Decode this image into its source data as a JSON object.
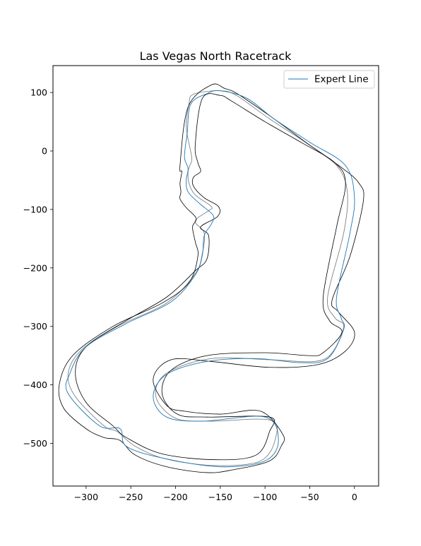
{
  "chart_data": {
    "type": "line",
    "title": "Las Vegas North Racetrack",
    "xlabel": "",
    "ylabel": "",
    "xlim": [
      -337,
      27
    ],
    "ylim": [
      -573,
      146
    ],
    "x_ticks": [
      -300,
      -250,
      -200,
      -150,
      -100,
      -50,
      0
    ],
    "x_tick_labels": [
      "−300",
      "−250",
      "−200",
      "−150",
      "−100",
      "−50",
      "0"
    ],
    "y_ticks": [
      100,
      0,
      -100,
      -200,
      -300,
      -400,
      -500
    ],
    "y_tick_labels": [
      "100",
      "0",
      "−100",
      "−200",
      "−300",
      "−400",
      "−500"
    ],
    "grid": false,
    "legend_position": "top-right",
    "colors": {
      "boundary": "#000000",
      "centerline": "#808080",
      "expert": "#1f77b4"
    },
    "series": [
      {
        "name": "",
        "role": "centerline",
        "x": [
          -151,
          -132,
          -95,
          -55,
          -20,
          -8,
          -12,
          -30,
          -22,
          -12,
          -25,
          -45,
          -95,
          -160,
          -210,
          -222,
          -200,
          -160,
          -95,
          -88,
          -105,
          -155,
          -210,
          -245,
          -265,
          -280,
          -312,
          -320,
          -305,
          -265,
          -210,
          -178,
          -170,
          -168,
          -178,
          -163,
          -160,
          -178,
          -185,
          -186,
          -184,
          -182,
          -188,
          -185,
          -180,
          -151
        ],
        "y": [
          103,
          95,
          55,
          15,
          -25,
          -70,
          -140,
          -250,
          -285,
          -300,
          -345,
          -360,
          -357,
          -355,
          -380,
          -420,
          -457,
          -462,
          -460,
          -490,
          -530,
          -538,
          -527,
          -505,
          -480,
          -470,
          -420,
          -380,
          -340,
          -300,
          -260,
          -210,
          -175,
          -140,
          -120,
          -102,
          -95,
          -75,
          -55,
          -35,
          -25,
          -10,
          40,
          80,
          97,
          103
        ]
      },
      {
        "name": "",
        "role": "outer-boundary",
        "x": [
          -160,
          -145,
          -130,
          -90,
          -50,
          -13,
          5,
          10,
          -5,
          -25,
          -18,
          0,
          -10,
          -40,
          -95,
          -160,
          -205,
          -225,
          -210,
          -190,
          -150,
          -105,
          -80,
          -82,
          -95,
          -135,
          -165,
          -210,
          -245,
          -262,
          -280,
          -300,
          -325,
          -330,
          -315,
          -270,
          -215,
          -185,
          -175,
          -178,
          -181,
          -177,
          -188,
          -195,
          -194,
          -195,
          -193,
          -195,
          -186,
          -160
        ],
        "y": [
          113,
          107,
          97,
          55,
          10,
          -30,
          -55,
          -85,
          -180,
          -255,
          -275,
          -310,
          -342,
          -365,
          -370,
          -360,
          -357,
          -390,
          -435,
          -445,
          -450,
          -445,
          -485,
          -505,
          -530,
          -545,
          -550,
          -540,
          -520,
          -495,
          -490,
          -475,
          -440,
          -400,
          -350,
          -300,
          -260,
          -225,
          -180,
          -155,
          -130,
          -115,
          -97,
          -82,
          -70,
          -55,
          -35,
          -25,
          75,
          113
        ]
      },
      {
        "name": "",
        "role": "inner-boundary",
        "x": [
          -150,
          -137,
          -100,
          -60,
          -22,
          -10,
          -20,
          -35,
          -28,
          -14,
          -35,
          -50,
          -100,
          -165,
          -205,
          -215,
          -198,
          -165,
          -95,
          -95,
          -110,
          -155,
          -215,
          -255,
          -270,
          -300,
          -312,
          -300,
          -255,
          -210,
          -178,
          -165,
          -163,
          -172,
          -153,
          -152,
          -168,
          -180,
          -180,
          -172,
          -175,
          -178,
          -170,
          -150
        ],
        "y": [
          95,
          85,
          50,
          15,
          -20,
          -55,
          -130,
          -250,
          -290,
          -310,
          -345,
          -350,
          -345,
          -350,
          -375,
          -415,
          -450,
          -455,
          -455,
          -480,
          -520,
          -528,
          -518,
          -490,
          -470,
          -430,
          -380,
          -335,
          -290,
          -250,
          -205,
          -185,
          -145,
          -130,
          -112,
          -95,
          -80,
          -60,
          -45,
          -35,
          -20,
          10,
          90,
          95
        ]
      },
      {
        "name": "Expert Line",
        "role": "expert",
        "x": [
          -150,
          -120,
          -90,
          -50,
          -10,
          0,
          -5,
          -20,
          -15,
          -12,
          -30,
          -60,
          -110,
          -165,
          -210,
          -225,
          -210,
          -170,
          -100,
          -85,
          -100,
          -150,
          -215,
          -255,
          -262,
          -285,
          -320,
          -318,
          -300,
          -255,
          -205,
          -178,
          -170,
          -168,
          -160,
          -158,
          -173,
          -186,
          -188,
          -186,
          -190,
          -187,
          -183,
          -165,
          -150
        ],
        "y": [
          103,
          90,
          55,
          15,
          -25,
          -80,
          -140,
          -250,
          -285,
          -305,
          -355,
          -362,
          -355,
          -360,
          -382,
          -420,
          -455,
          -462,
          -455,
          -495,
          -530,
          -540,
          -525,
          -505,
          -475,
          -470,
          -415,
          -380,
          -335,
          -295,
          -258,
          -212,
          -178,
          -145,
          -125,
          -110,
          -90,
          -70,
          -50,
          -30,
          -10,
          30,
          80,
          98,
          103
        ]
      }
    ]
  }
}
